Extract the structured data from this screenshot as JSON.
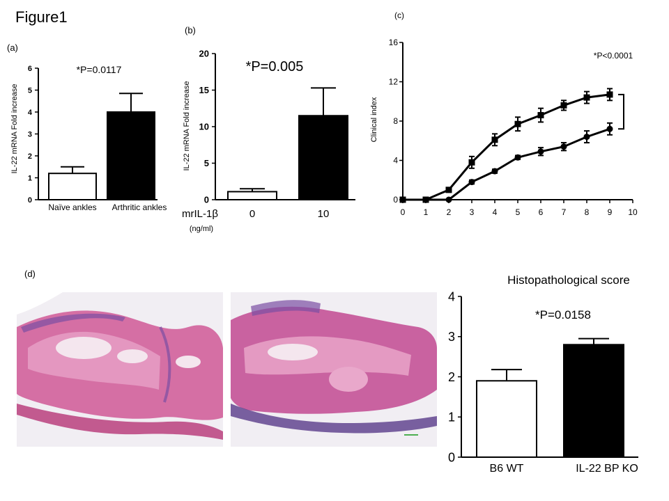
{
  "figure_title": "Figure1",
  "colors": {
    "filled_bar": "#000000",
    "open_bar": "#ffffff",
    "stroke": "#000000",
    "tissue_pink": "#d56fa4",
    "tissue_purple": "#7a4fa3",
    "background_slide": "#f1eef3"
  },
  "panel_d": {
    "label": "(d)",
    "micrograph_left": {
      "alt": "histology section"
    },
    "micrograph_right": {
      "alt": "histology section"
    }
  },
  "chart_data": [
    {
      "type": "bar",
      "panel_label": "(a)",
      "ylabel": "IL-22  mRNA Fold  increase",
      "categories": [
        "Naïve ankles",
        "Arthritic ankles"
      ],
      "values": [
        1.2,
        4.0
      ],
      "errors": [
        0.3,
        0.85
      ],
      "fills": [
        "open",
        "filled"
      ],
      "ylim": [
        0,
        6
      ],
      "yticks": [
        "0",
        "1",
        "2",
        "3",
        "4",
        "5",
        "6"
      ],
      "annotation": "*P=0.0117"
    },
    {
      "type": "bar",
      "panel_label": "(b)",
      "ylabel": "IL-22  mRNA Fold  increase",
      "xlabel": "mrIL-1β",
      "xunit": "(ng/ml)",
      "categories": [
        "0",
        "10"
      ],
      "values": [
        1.1,
        11.5
      ],
      "errors": [
        0.4,
        3.8
      ],
      "fills": [
        "open",
        "filled"
      ],
      "ylim": [
        0,
        20
      ],
      "yticks": [
        "0",
        "5",
        "10",
        "15",
        "20"
      ],
      "annotation": "*P=0.005"
    },
    {
      "type": "line",
      "panel_label": "(c)",
      "ylabel": "Clinical index",
      "x": [
        0,
        1,
        2,
        3,
        4,
        5,
        6,
        7,
        8,
        9,
        10
      ],
      "xticks": [
        "0",
        "1",
        "2",
        "3",
        "4",
        "5",
        "6",
        "7",
        "8",
        "9",
        "10"
      ],
      "xlim": [
        0,
        10
      ],
      "ylim": [
        0,
        16
      ],
      "yticks": [
        "0",
        "4",
        "8",
        "12",
        "16"
      ],
      "series": [
        {
          "marker": "square",
          "values": [
            0,
            0,
            1.0,
            3.8,
            6.1,
            7.7,
            8.6,
            9.6,
            10.4,
            10.7,
            null
          ],
          "errors": [
            0,
            0,
            0.2,
            0.6,
            0.6,
            0.7,
            0.7,
            0.5,
            0.6,
            0.6,
            null
          ]
        },
        {
          "marker": "circle",
          "values": [
            0,
            0,
            0,
            1.8,
            2.9,
            4.3,
            4.9,
            5.4,
            6.4,
            7.2,
            null
          ],
          "errors": [
            0,
            0,
            0,
            0.2,
            0.2,
            0.2,
            0.4,
            0.4,
            0.6,
            0.6,
            null
          ]
        }
      ],
      "annotation": "*P<0.0001"
    },
    {
      "type": "bar",
      "panel_label": "",
      "title": "Histopathological score",
      "categories": [
        "B6 WT",
        "IL-22 BP KO"
      ],
      "values": [
        1.9,
        2.8
      ],
      "errors": [
        0.28,
        0.15
      ],
      "fills": [
        "open",
        "filled"
      ],
      "ylim": [
        0,
        4
      ],
      "yticks": [
        "0",
        "1",
        "2",
        "3",
        "4"
      ],
      "annotation": "*P=0.0158"
    }
  ]
}
